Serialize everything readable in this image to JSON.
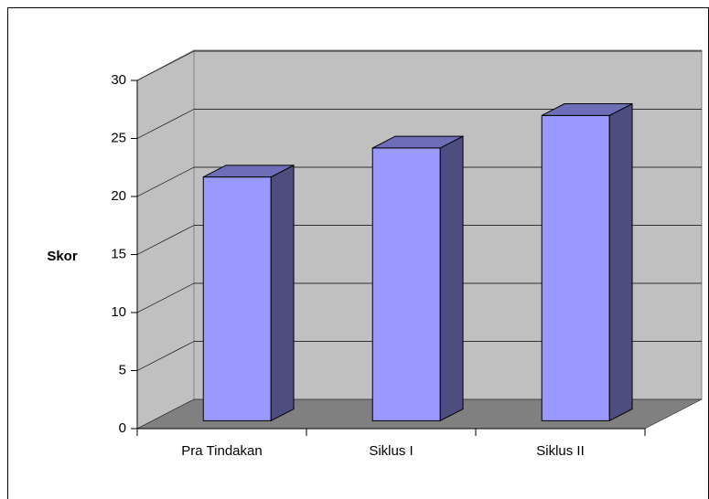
{
  "chart_data": {
    "type": "bar3d",
    "y_label": "Skor",
    "categories": [
      "Pra Tindakan",
      "Siklus I",
      "Siklus II"
    ],
    "values": [
      21,
      23.5,
      26.3
    ],
    "color": "#9999ff",
    "ylim": [
      0,
      30
    ],
    "yticks": [
      0,
      5,
      10,
      15,
      20,
      25,
      30
    ],
    "grid": true
  }
}
